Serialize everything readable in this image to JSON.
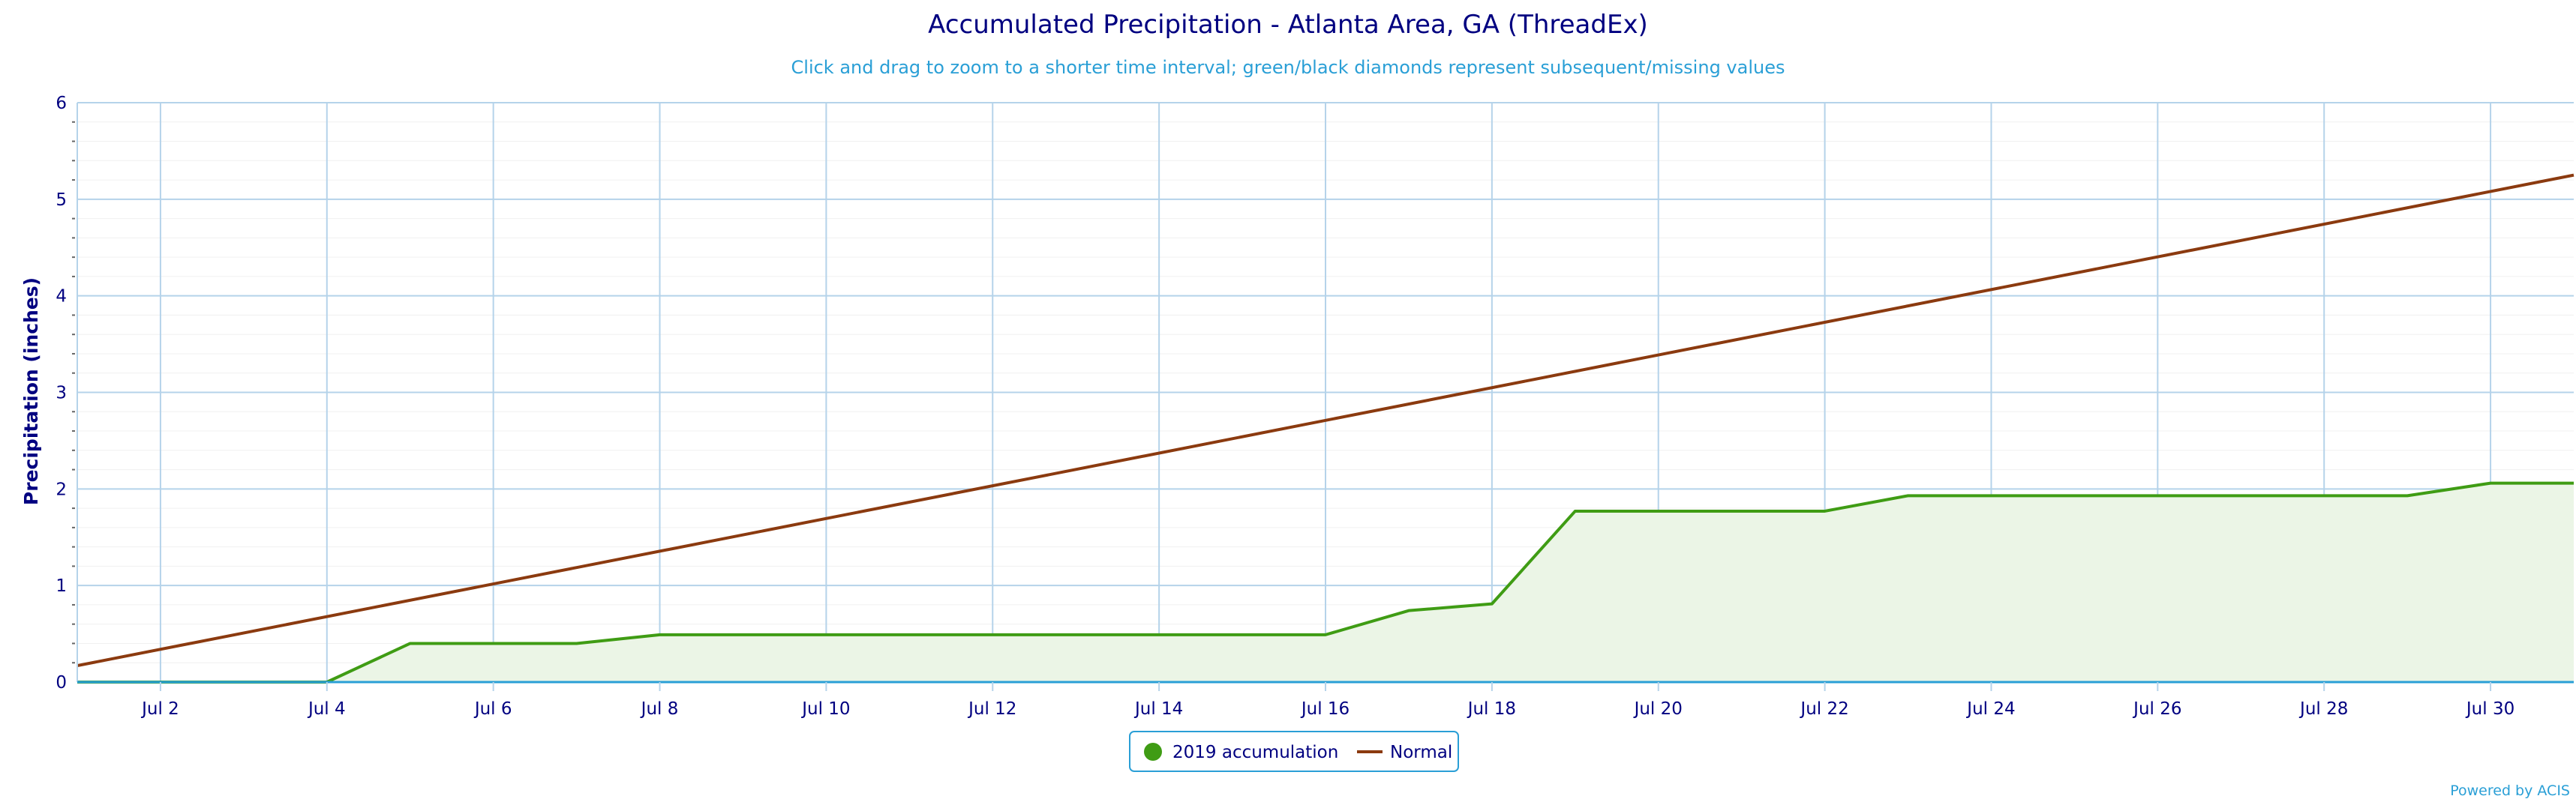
{
  "chart_data": {
    "type": "line",
    "title": "Accumulated Precipitation - Atlanta Area, GA (ThreadEx)",
    "subtitle": "Click and drag to zoom to a shorter time interval; green/black diamonds represent subsequent/missing values",
    "ylabel": "Precipitation (inches)",
    "xlabel": "",
    "xlim": [
      1,
      31
    ],
    "ylim": [
      0,
      6
    ],
    "yticks": [
      0,
      1,
      2,
      3,
      4,
      5,
      6
    ],
    "xticks": [
      {
        "day": 2,
        "label": "Jul 2"
      },
      {
        "day": 4,
        "label": "Jul 4"
      },
      {
        "day": 6,
        "label": "Jul 6"
      },
      {
        "day": 8,
        "label": "Jul 8"
      },
      {
        "day": 10,
        "label": "Jul 10"
      },
      {
        "day": 12,
        "label": "Jul 12"
      },
      {
        "day": 14,
        "label": "Jul 14"
      },
      {
        "day": 16,
        "label": "Jul 16"
      },
      {
        "day": 18,
        "label": "Jul 18"
      },
      {
        "day": 20,
        "label": "Jul 20"
      },
      {
        "day": 22,
        "label": "Jul 22"
      },
      {
        "day": 24,
        "label": "Jul 24"
      },
      {
        "day": 26,
        "label": "Jul 26"
      },
      {
        "day": 28,
        "label": "Jul 28"
      },
      {
        "day": 30,
        "label": "Jul 30"
      }
    ],
    "grid": true,
    "legend_position": "bottom-center",
    "series": [
      {
        "name": "2019 accumulation",
        "color": "#3f9c14",
        "fill": "#ebf5e6",
        "x": [
          1,
          2,
          3,
          4,
          5,
          6,
          7,
          8,
          9,
          10,
          11,
          12,
          13,
          14,
          15,
          16,
          17,
          18,
          19,
          20,
          21,
          22,
          23,
          24,
          25,
          26,
          27,
          28,
          29,
          30,
          31
        ],
        "y": [
          0.0,
          0.0,
          0.0,
          0.0,
          0.4,
          0.4,
          0.4,
          0.49,
          0.49,
          0.49,
          0.49,
          0.49,
          0.49,
          0.49,
          0.49,
          0.49,
          0.74,
          0.81,
          1.77,
          1.77,
          1.77,
          1.77,
          1.93,
          1.93,
          1.93,
          1.93,
          1.93,
          1.93,
          1.93,
          2.06,
          2.06
        ]
      },
      {
        "name": "Normal",
        "color": "#8b3a0f",
        "x": [
          1,
          31
        ],
        "y": [
          0.17,
          5.25
        ]
      }
    ]
  },
  "footer": {
    "credit": "Powered by ACIS"
  }
}
